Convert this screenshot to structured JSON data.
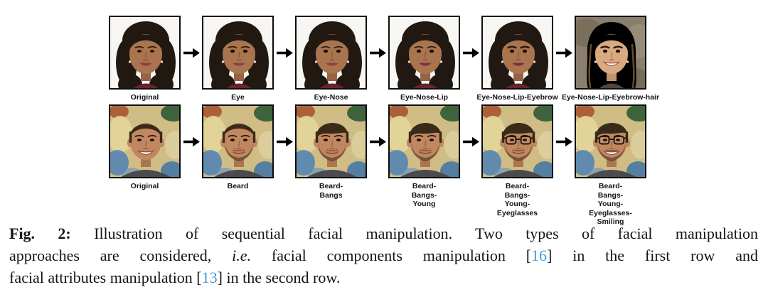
{
  "page": {
    "background": "#ffffff"
  },
  "figure": {
    "arrow_symbol": "→",
    "face_styles": {
      "woman": {
        "subject": "woman",
        "bg": "#f7f6f2",
        "hair": "#211812",
        "strand": "#3a2a1d",
        "skin": "#a9744e",
        "neck": "#966344",
        "lips": "#8e3e45",
        "lips_strong": "#7c2f3d",
        "chest": "#69222e",
        "smile": "closed"
      },
      "blonde_woman": {
        "subject": "woman",
        "variant": "blonde",
        "bg": "#8a7f6e",
        "hair": "#c9a462",
        "strand": "#a8823e",
        "skin": "#d9a981",
        "neck": "#c2946e",
        "lips": "#b26257",
        "lips_strong": "#a55650",
        "chest": "#4e463c",
        "smile": "big"
      },
      "man": {
        "subject": "man",
        "skin": "#c18760",
        "neck": "#aa7650",
        "hair": "#3a2a19",
        "shirt": "#4b4a4f",
        "smile": "slight"
      }
    },
    "rows": [
      {
        "name": "facial-components-manipulation",
        "cells": [
          {
            "label": "Original",
            "label_lines": [
              "Original"
            ],
            "image_desc": "woman-portrait-original",
            "face": {
              "base": "woman"
            }
          },
          {
            "label": "Eye",
            "label_lines": [
              "Eye"
            ],
            "image_desc": "woman-portrait-eye-manipulated",
            "face": {
              "base": "woman",
              "eye": true
            }
          },
          {
            "label": "Eye-Nose",
            "label_lines": [
              "Eye-Nose"
            ],
            "image_desc": "woman-portrait-eye-nose-manipulated",
            "face": {
              "base": "woman",
              "eye": true,
              "nose": true
            }
          },
          {
            "label": "Eye-Nose-Lip",
            "label_lines": [
              "Eye-Nose-Lip"
            ],
            "image_desc": "woman-portrait-eye-nose-lip-manipulated",
            "face": {
              "base": "woman",
              "eye": true,
              "nose": true,
              "lip": true
            }
          },
          {
            "label": "Eye-Nose-Lip-Eyebrow",
            "label_lines": [
              "Eye-Nose-Lip-Eyebrow"
            ],
            "image_desc": "woman-portrait-eye-nose-lip-eyebrow-manipulated",
            "face": {
              "base": "woman",
              "eye": true,
              "nose": true,
              "lip": true,
              "eyebrow": true
            }
          },
          {
            "label": "Eye-Nose-Lip-Eyebrow-hair",
            "label_lines": [
              "Eye-Nose-Lip-Eyebrow-hair"
            ],
            "image_desc": "blonde-woman-portrait-fully-manipulated",
            "face": {
              "base": "blonde_woman",
              "eye": true,
              "nose": true,
              "lip": true,
              "eyebrow": true,
              "hair": true
            }
          }
        ]
      },
      {
        "name": "facial-attributes-manipulation",
        "cells": [
          {
            "label": "Original",
            "label_lines": [
              "Original"
            ],
            "image_desc": "man-portrait-original",
            "face": {
              "base": "man",
              "smile": "big"
            }
          },
          {
            "label": "Beard",
            "label_lines": [
              "Beard"
            ],
            "image_desc": "man-portrait-beard",
            "face": {
              "base": "man",
              "beard": true
            }
          },
          {
            "label": "Beard-Bangs",
            "label_lines": [
              "Beard-",
              "Bangs"
            ],
            "image_desc": "man-portrait-beard-bangs",
            "face": {
              "base": "man",
              "beard": true,
              "bangs": true
            }
          },
          {
            "label": "Beard-Bangs-Young",
            "label_lines": [
              "Beard-",
              "Bangs-",
              "Young"
            ],
            "image_desc": "man-portrait-beard-bangs-young",
            "face": {
              "base": "man",
              "beard": true,
              "bangs": true,
              "young": true
            }
          },
          {
            "label": "Beard-Bangs-Young-Eyeglasses",
            "label_lines": [
              "Beard-",
              "Bangs-",
              "Young-",
              "Eyeglasses"
            ],
            "image_desc": "man-portrait-beard-bangs-young-eyeglasses",
            "face": {
              "base": "man",
              "beard": true,
              "bangs": true,
              "young": true,
              "glasses": true
            }
          },
          {
            "label": "Beard-Bangs-Young-Eyeglasses-Smiling",
            "label_lines": [
              "Beard-",
              "Bangs-",
              "Young-",
              "Eyeglasses-",
              "Smiling"
            ],
            "image_desc": "man-portrait-beard-bangs-young-eyeglasses-smiling",
            "face": {
              "base": "man",
              "beard": true,
              "bangs": true,
              "young": true,
              "glasses": true,
              "smile": "big"
            }
          }
        ]
      }
    ]
  },
  "caption": {
    "citation_color": "#3d9bd3",
    "lines": [
      {
        "segments": [
          {
            "t": "Fig. 2:",
            "style": "bold"
          },
          {
            "t": " Illustration of sequential facial manipulation. Two types of facial manipulation",
            "style": "plain"
          }
        ]
      },
      {
        "segments": [
          {
            "t": "approaches are considered, ",
            "style": "plain"
          },
          {
            "t": "i.e.",
            "style": "italic"
          },
          {
            "t": " facial components manipulation [",
            "style": "plain"
          },
          {
            "t": "16",
            "style": "cite",
            "name": "citation-16-link"
          },
          {
            "t": "] in the first row and",
            "style": "plain"
          }
        ]
      },
      {
        "segments": [
          {
            "t": "facial attributes manipulation [",
            "style": "plain"
          },
          {
            "t": "13",
            "style": "cite",
            "name": "citation-13-link"
          },
          {
            "t": "] in the second row.",
            "style": "plain"
          }
        ]
      }
    ]
  }
}
